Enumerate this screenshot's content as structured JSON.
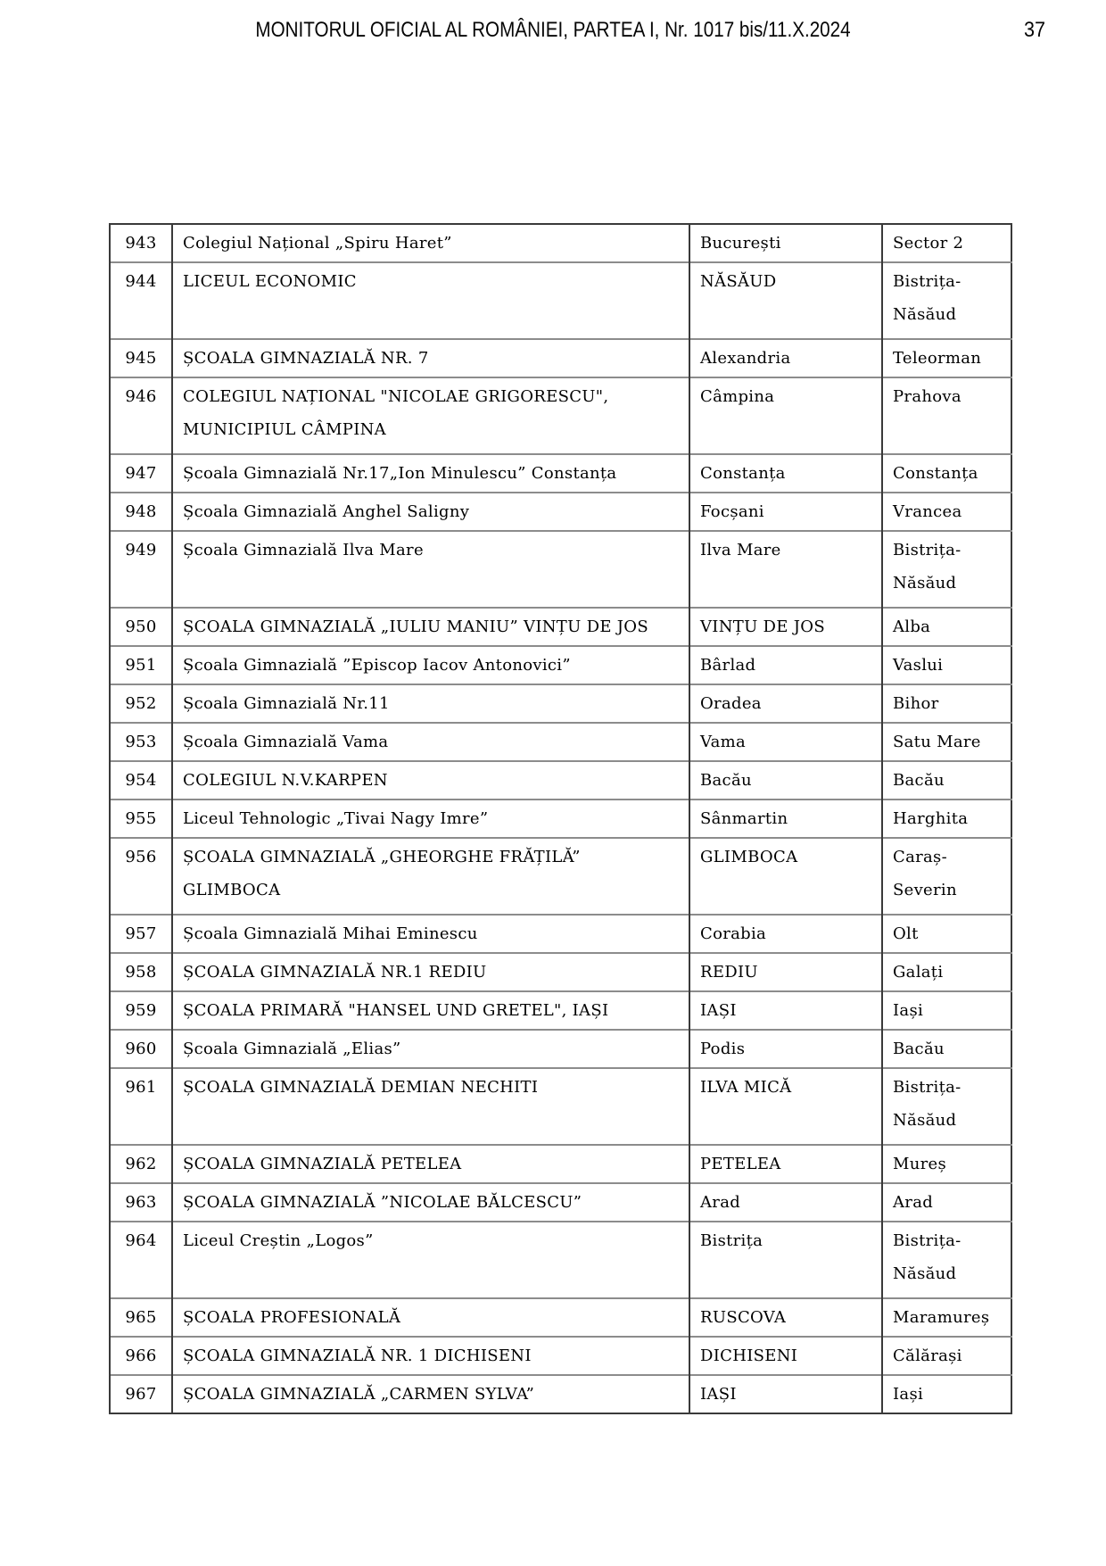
{
  "page": {
    "header_title": "MONITORUL OFICIAL AL ROMÂNIEI, PARTEA I, Nr. 1017 bis/11.X.2024",
    "page_number": "37"
  },
  "table": {
    "rows": [
      {
        "no": "943",
        "school": "Colegiul Național „Spiru Haret”",
        "city": "București",
        "county": "Sector 2",
        "tall": false
      },
      {
        "no": "944",
        "school": "LICEUL ECONOMIC",
        "city": "NĂSĂUD",
        "county": "Bistrița-\nNăsăud",
        "tall": true
      },
      {
        "no": "945",
        "school": "ȘCOALA GIMNAZIALĂ NR. 7",
        "city": "Alexandria",
        "county": "Teleorman",
        "tall": false
      },
      {
        "no": "946",
        "school": "COLEGIUL NAȚIONAL \"NICOLAE GRIGORESCU\",\nMUNICIPIUL CÂMPINA",
        "city": "Câmpina",
        "county": "Prahova",
        "tall": true
      },
      {
        "no": "947",
        "school": "Școala Gimnazială Nr.17„Ion Minulescu” Constanța",
        "city": "Constanța",
        "county": "Constanța",
        "tall": false
      },
      {
        "no": "948",
        "school": "Școala Gimnazială Anghel Saligny",
        "city": "Focșani",
        "county": "Vrancea",
        "tall": false
      },
      {
        "no": "949",
        "school": "Școala Gimnazială Ilva Mare",
        "city": "Ilva Mare",
        "county": "Bistrița-\nNăsăud",
        "tall": true
      },
      {
        "no": "950",
        "school": "ȘCOALA GIMNAZIALĂ „IULIU MANIU” VINȚU DE JOS",
        "city": "VINȚU DE JOS",
        "county": "Alba",
        "tall": false
      },
      {
        "no": "951",
        "school": "Școala Gimnazială ”Episcop Iacov Antonovici”",
        "city": "Bârlad",
        "county": "Vaslui",
        "tall": false
      },
      {
        "no": "952",
        "school": "Școala Gimnazială Nr.11",
        "city": "Oradea",
        "county": "Bihor",
        "tall": false
      },
      {
        "no": "953",
        "school": "Școala Gimnazială Vama",
        "city": "Vama",
        "county": "Satu Mare",
        "tall": false
      },
      {
        "no": "954",
        "school": "COLEGIUL N.V.KARPEN",
        "city": "Bacău",
        "county": "Bacău",
        "tall": false
      },
      {
        "no": "955",
        "school": "Liceul Tehnologic „Tivai Nagy Imre”",
        "city": "Sânmartin",
        "county": "Harghita",
        "tall": false
      },
      {
        "no": "956",
        "school": "ȘCOALA GIMNAZIALĂ „GHEORGHE FRĂȚILĂ”\nGLIMBOCA",
        "city": "GLIMBOCA",
        "county": "Caraș-\nSeverin",
        "tall": true
      },
      {
        "no": "957",
        "school": "Școala Gimnazială Mihai Eminescu",
        "city": "Corabia",
        "county": "Olt",
        "tall": false
      },
      {
        "no": "958",
        "school": "ȘCOALA GIMNAZIALĂ NR.1 REDIU",
        "city": "REDIU",
        "county": "Galați",
        "tall": false
      },
      {
        "no": "959",
        "school": "ȘCOALA PRIMARĂ \"HANSEL UND GRETEL\", IAȘI",
        "city": "IAȘI",
        "county": "Iași",
        "tall": false
      },
      {
        "no": "960",
        "school": "Școala Gimnazială „Elias”",
        "city": "Podis",
        "county": "Bacău",
        "tall": false
      },
      {
        "no": "961",
        "school": "ȘCOALA GIMNAZIALĂ DEMIAN NECHITI",
        "city": "ILVA MICĂ",
        "county": "Bistrița-\nNăsăud",
        "tall": true
      },
      {
        "no": "962",
        "school": "ȘCOALA GIMNAZIALĂ PETELEA",
        "city": "PETELEA",
        "county": "Mureș",
        "tall": false
      },
      {
        "no": "963",
        "school": "ȘCOALA GIMNAZIALĂ ”NICOLAE BĂLCESCU”",
        "city": "Arad",
        "county": "Arad",
        "tall": false
      },
      {
        "no": "964",
        "school": "Liceul Creștin „Logos”",
        "city": "Bistrița",
        "county": "Bistrița-\nNăsăud",
        "tall": true
      },
      {
        "no": "965",
        "school": "ȘCOALA PROFESIONALĂ",
        "city": "RUSCOVA",
        "county": "Maramureș",
        "tall": false
      },
      {
        "no": "966",
        "school": "ȘCOALA GIMNAZIALĂ NR. 1 DICHISENI",
        "city": "DICHISENI",
        "county": "Călărași",
        "tall": false
      },
      {
        "no": "967",
        "school": "ȘCOALA GIMNAZIALĂ „CARMEN SYLVA”",
        "city": "IAȘI",
        "county": "Iași",
        "tall": false
      }
    ]
  }
}
